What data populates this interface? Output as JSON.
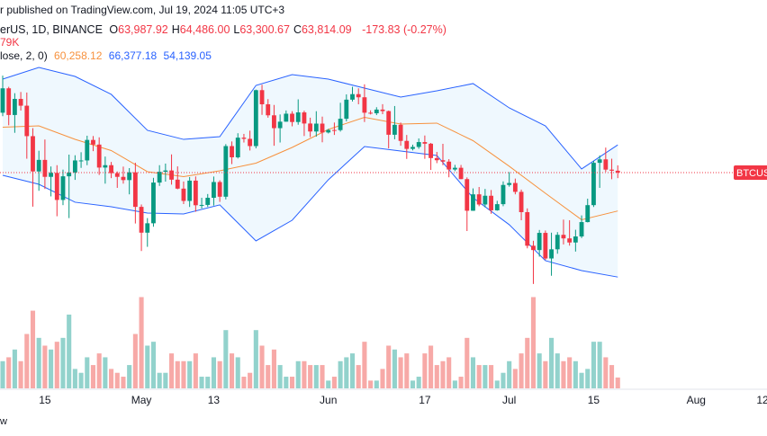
{
  "chart_data": {
    "type": "candlestick",
    "header": {
      "line1": "r published on TradingView.com, Jul 19, 2024 11:05 UTC+3",
      "symbol": "erUS, 1D, BINANCE",
      "ohlc": [
        [
          "O",
          "63,987.92"
        ],
        [
          "H",
          "64,486.00"
        ],
        [
          "L",
          "63,300.67"
        ],
        [
          "C",
          "63,814.09"
        ]
      ],
      "change": "-173.83 (-0.27%)",
      "volume": "79K",
      "indicator": "lose, 2, 0)",
      "indicator_values": [
        "60,258.12",
        "66,377.18",
        "54,139.05"
      ]
    },
    "footer": "w",
    "symbol_label": "BTCUSD",
    "up_color": "#089981",
    "down_color": "#f23645",
    "vol_up_color": "#92d2cc",
    "vol_down_color": "#f7a9a7",
    "x": [
      "Apr 8",
      "Apr 9",
      "Apr 10",
      "Apr 11",
      "Apr 12",
      "Apr 13",
      "Apr 14",
      "Apr 15",
      "Apr 16",
      "Apr 17",
      "Apr 18",
      "Apr 19",
      "Apr 20",
      "Apr 21",
      "Apr 22",
      "Apr 23",
      "Apr 24",
      "Apr 25",
      "Apr 26",
      "Apr 27",
      "Apr 28",
      "Apr 29",
      "Apr 30",
      "May 1",
      "May 2",
      "May 3",
      "May 4",
      "May 5",
      "May 6",
      "May 7",
      "May 8",
      "May 9",
      "May 10",
      "May 11",
      "May 12",
      "May 13",
      "May 14",
      "May 15",
      "May 16",
      "May 17",
      "May 18",
      "May 19",
      "May 20",
      "May 21",
      "May 22",
      "May 23",
      "May 24",
      "May 25",
      "May 26",
      "May 27",
      "May 28",
      "May 29",
      "May 30",
      "May 31",
      "Jun 1",
      "Jun 2",
      "Jun 3",
      "Jun 4",
      "Jun 5",
      "Jun 6",
      "Jun 7",
      "Jun 8",
      "Jun 9",
      "Jun 10",
      "Jun 11",
      "Jun 12",
      "Jun 13",
      "Jun 14",
      "Jun 15",
      "Jun 16",
      "Jun 17",
      "Jun 18",
      "Jun 19",
      "Jun 20",
      "Jun 21",
      "Jun 22",
      "Jun 23",
      "Jun 24",
      "Jun 25",
      "Jun 26",
      "Jun 27",
      "Jun 28",
      "Jun 29",
      "Jun 30",
      "Jul 1",
      "Jul 2",
      "Jul 3",
      "Jul 4",
      "Jul 5",
      "Jul 6",
      "Jul 7",
      "Jul 8",
      "Jul 9",
      "Jul 10",
      "Jul 11",
      "Jul 12",
      "Jul 13",
      "Jul 14",
      "Jul 15",
      "Jul 16",
      "Jul 17",
      "Jul 18",
      "Jul 19"
    ],
    "open": [
      69360,
      71620,
      69150,
      70640,
      70010,
      67190,
      63920,
      64990,
      63420,
      63790,
      61280,
      63470,
      63820,
      64940,
      64940,
      66840,
      66410,
      64280,
      64500,
      63760,
      63420,
      63120,
      63840,
      60640,
      58250,
      59120,
      62890,
      63890,
      64010,
      63160,
      62330,
      61190,
      63070,
      60790,
      60820,
      61480,
      62940,
      61580,
      66270,
      65230,
      67050,
      66940,
      66270,
      71450,
      70140,
      69120,
      67930,
      68530,
      69270,
      68500,
      69390,
      68360,
      67620,
      68350,
      67530,
      67760,
      67750,
      68800,
      70570,
      71080,
      70790,
      69360,
      69310,
      69650,
      69510,
      67320,
      68240,
      66750,
      66010,
      66190,
      66640,
      66490,
      65160,
      64960,
      64830,
      64100,
      64260,
      63210,
      60280,
      61800,
      60860,
      61670,
      60320,
      60890,
      62670,
      62850,
      62030,
      60150,
      57040,
      56640,
      58230,
      55860,
      56710,
      58050,
      57720,
      57340,
      57900,
      59230,
      60800,
      64720,
      65040,
      64090,
      63987.92
    ],
    "high": [
      72800,
      71760,
      71170,
      71280,
      71230,
      67930,
      65840,
      66880,
      64380,
      64500,
      64090,
      65480,
      65420,
      65700,
      67230,
      67200,
      67080,
      65300,
      64800,
      63920,
      64370,
      64230,
      64730,
      60860,
      59600,
      63330,
      64500,
      64650,
      65500,
      64390,
      62990,
      63400,
      63460,
      61480,
      61830,
      63450,
      63100,
      66450,
      66700,
      67460,
      67400,
      67700,
      71500,
      71950,
      70620,
      70080,
      69200,
      69570,
      69500,
      70600,
      69550,
      68900,
      69500,
      69000,
      67860,
      68450,
      70280,
      71060,
      71760,
      71620,
      71990,
      69580,
      69870,
      70150,
      69560,
      69980,
      68450,
      67300,
      66400,
      66980,
      67250,
      66560,
      65730,
      66480,
      65060,
      64530,
      64520,
      63370,
      62350,
      62480,
      62300,
      62200,
      61200,
      63000,
      63860,
      63260,
      62240,
      60500,
      57500,
      58500,
      58450,
      58250,
      58300,
      59460,
      59400,
      58520,
      59850,
      61400,
      64900,
      65400,
      66130,
      65100,
      64486.0
    ],
    "low": [
      69040,
      68200,
      67500,
      69560,
      65100,
      60660,
      62130,
      62300,
      61610,
      59770,
      60800,
      59600,
      63140,
      64250,
      64500,
      65800,
      63600,
      62790,
      63300,
      62400,
      62790,
      61800,
      59100,
      56550,
      56940,
      58800,
      62580,
      62980,
      62700,
      62270,
      60900,
      60630,
      60190,
      60490,
      60630,
      60760,
      61100,
      61330,
      64600,
      65120,
      66600,
      65860,
      66060,
      69160,
      68900,
      66300,
      66600,
      68520,
      68100,
      68250,
      67200,
      67100,
      67140,
      66620,
      67440,
      67300,
      67610,
      68560,
      70400,
      70140,
      68500,
      69200,
      69140,
      69230,
      66060,
      66900,
      66300,
      65080,
      65870,
      66020,
      65090,
      64060,
      64690,
      64500,
      63380,
      63950,
      63200,
      58400,
      60270,
      60700,
      60600,
      60000,
      60280,
      60700,
      62510,
      61800,
      59400,
      56800,
      53500,
      56030,
      55720,
      54260,
      56300,
      57160,
      57050,
      56500,
      57750,
      59200,
      60630,
      62400,
      63880,
      63200,
      63300.67
    ],
    "close": [
      71620,
      69150,
      70640,
      70010,
      67190,
      63920,
      64990,
      63420,
      63790,
      61280,
      63470,
      63820,
      64940,
      64940,
      66840,
      66410,
      64280,
      64500,
      63760,
      63420,
      63120,
      63840,
      60640,
      58250,
      59120,
      62890,
      63890,
      64010,
      63160,
      62330,
      61190,
      63070,
      60790,
      60820,
      61480,
      62940,
      61580,
      66270,
      65230,
      67050,
      66940,
      66270,
      71450,
      70140,
      69120,
      67930,
      68530,
      69270,
      68500,
      69390,
      68360,
      67620,
      68350,
      67530,
      67760,
      67750,
      68800,
      70570,
      71080,
      70790,
      69360,
      69310,
      69650,
      69510,
      67320,
      68240,
      66750,
      66010,
      66190,
      66640,
      66490,
      65160,
      64960,
      64830,
      64100,
      64260,
      63210,
      60280,
      61800,
      60860,
      61670,
      60320,
      60890,
      62670,
      62850,
      62030,
      60150,
      57040,
      56640,
      58230,
      55860,
      56710,
      58050,
      57720,
      57340,
      57900,
      59230,
      60800,
      64720,
      65040,
      64090,
      63987.92,
      63814.09
    ],
    "volume": [
      7,
      8,
      10,
      7,
      14,
      20,
      13,
      11,
      10,
      12,
      13,
      19,
      5,
      4,
      8,
      6,
      9,
      8,
      5,
      4,
      3,
      6,
      14,
      23.5,
      11,
      12,
      4,
      4,
      9,
      7,
      7,
      7,
      9,
      3,
      3,
      8,
      7,
      15,
      9,
      8,
      3,
      4,
      15,
      11,
      6,
      10,
      6,
      3,
      3,
      7,
      7,
      6,
      6,
      6,
      2,
      3,
      7,
      8,
      9,
      6,
      12,
      2,
      2,
      5,
      11,
      10,
      8,
      9,
      2,
      3,
      9,
      11,
      6,
      7,
      8,
      2,
      3,
      13,
      8,
      6,
      6,
      6,
      2,
      4,
      7,
      5,
      9,
      13,
      23.5,
      9,
      7,
      13,
      9,
      7,
      8,
      7,
      4,
      5,
      12,
      12,
      8,
      6,
      2.79
    ],
    "bands": [
      {
        "name": "middle",
        "color": "#f7913d",
        "x": [
          "Apr 8",
          "Apr 14",
          "Apr 20",
          "Apr 26",
          "May 2",
          "May 8",
          "May 14",
          "May 20",
          "May 26",
          "Jun 1",
          "Jun 7",
          "Jun 13",
          "Jun 19",
          "Jun 25",
          "Jul 1",
          "Jul 7",
          "Jul 13",
          "Jul 19"
        ],
        "values": [
          68015,
          68140,
          66895,
          65855,
          63900,
          63435,
          63980,
          64690,
          66145,
          67810,
          68935,
          68310,
          68395,
          66770,
          64400,
          61900,
          59445,
          60258.12
        ]
      },
      {
        "name": "upper",
        "color": "#2962ff",
        "x": [
          "Apr 8",
          "Apr 14",
          "Apr 20",
          "Apr 26",
          "May 2",
          "May 8",
          "May 14",
          "May 20",
          "May 26",
          "Jun 1",
          "Jun 7",
          "Jun 13",
          "Jun 19",
          "Jun 25",
          "Jul 1",
          "Jul 7",
          "Jul 13",
          "Jul 19"
        ],
        "values": [
          72470,
          73550,
          72720,
          71060,
          67730,
          66890,
          67140,
          71890,
          72890,
          72470,
          71640,
          70810,
          71390,
          72060,
          69810,
          68140,
          64150,
          66377.18
        ]
      },
      {
        "name": "lower",
        "color": "#2962ff",
        "x": [
          "Apr 8",
          "Apr 14",
          "Apr 20",
          "Apr 26",
          "May 2",
          "May 8",
          "May 14",
          "May 20",
          "May 26",
          "Jun 1",
          "Jun 7",
          "Jun 13",
          "Jun 19",
          "Jun 25",
          "Jul 1",
          "Jul 7",
          "Jul 13",
          "Jul 19"
        ],
        "values": [
          63560,
          62730,
          61070,
          60650,
          60070,
          59980,
          60820,
          57490,
          59400,
          63150,
          66230,
          65810,
          65400,
          61480,
          58990,
          55660,
          54740,
          54139.05
        ]
      }
    ],
    "band_fill": "rgba(33,150,243,0.07)",
    "xlim": [
      "Apr 8",
      "Aug 12"
    ],
    "ylim": [
      43830,
      79800
    ],
    "vlim": [
      0,
      100
    ],
    "xticks": [
      {
        "value": "Apr 15",
        "label": "15"
      },
      {
        "value": "May 1",
        "label": "May"
      },
      {
        "value": "May 13",
        "label": "13"
      },
      {
        "value": "Jun 1",
        "label": "Jun"
      },
      {
        "value": "Jun 17",
        "label": "17"
      },
      {
        "value": "Jul 1",
        "label": "Jul"
      },
      {
        "value": "Jul 15",
        "label": "15"
      },
      {
        "value": "Aug 1",
        "label": "Aug"
      },
      {
        "value": "Aug 12",
        "label": "12"
      }
    ]
  }
}
